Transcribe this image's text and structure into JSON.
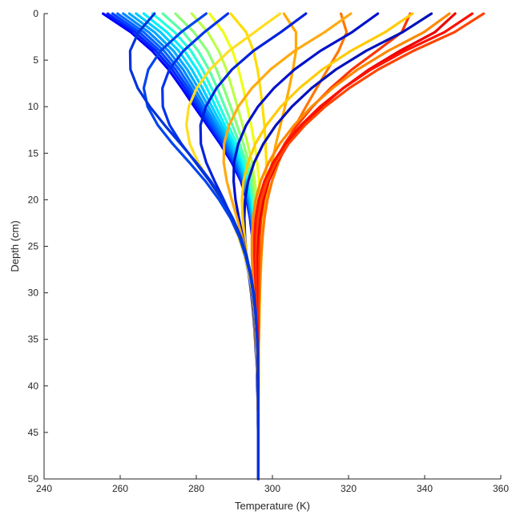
{
  "chart_data": {
    "type": "line",
    "xlabel": "Temperature (K)",
    "ylabel": "Depth (cm)",
    "xlim": [
      240,
      360
    ],
    "ylim": [
      0,
      50
    ],
    "y_reversed": true,
    "xticks": [
      240,
      260,
      280,
      300,
      320,
      340,
      360
    ],
    "yticks": [
      0,
      5,
      10,
      15,
      20,
      25,
      30,
      35,
      40,
      45,
      50
    ],
    "x_tick_labels": [
      "240",
      "260",
      "280",
      "300",
      "320",
      "340",
      "360"
    ],
    "y_tick_labels": [
      "0",
      "5",
      "10",
      "15",
      "20",
      "25",
      "30",
      "35",
      "40",
      "45",
      "50"
    ],
    "grid": false,
    "legend": "none",
    "depth": [
      0,
      2,
      4,
      6,
      8,
      10,
      12,
      14,
      16,
      18,
      20,
      22,
      24,
      26,
      28,
      30,
      32,
      34,
      36,
      38,
      40,
      42,
      44,
      46,
      48,
      50
    ],
    "series": [
      {
        "color": "#0000ff",
        "values": [
          255.5,
          262.8,
          268.4,
          272.7,
          276.2,
          279.5,
          282.9,
          286.3,
          289.3,
          291.7,
          293.2,
          294.1,
          294.7,
          295.2,
          295.5,
          295.8,
          296.0,
          296.1,
          296.2,
          296.2,
          296.3,
          296.3,
          296.3,
          296.3,
          296.3,
          296.3
        ]
      },
      {
        "color": "#0022ff",
        "values": [
          256.7,
          263.9,
          269.4,
          273.6,
          277.0,
          280.1,
          283.4,
          286.7,
          289.6,
          291.9,
          293.3,
          294.2,
          294.8,
          295.2,
          295.6,
          295.8,
          296.0,
          296.1,
          296.2,
          296.2,
          296.3,
          296.3,
          296.3,
          296.3,
          296.3,
          296.3
        ]
      },
      {
        "color": "#0044ff",
        "values": [
          258.0,
          265.0,
          270.4,
          274.5,
          277.8,
          280.8,
          283.9,
          287.1,
          289.9,
          292.1,
          293.5,
          294.3,
          294.9,
          295.3,
          295.6,
          295.9,
          296.0,
          296.1,
          296.2,
          296.2,
          296.3,
          296.3,
          296.3,
          296.3,
          296.3,
          296.3
        ]
      },
      {
        "color": "#0066ff",
        "values": [
          259.3,
          266.2,
          271.5,
          275.5,
          278.6,
          281.5,
          284.5,
          287.6,
          290.3,
          292.4,
          293.6,
          294.4,
          295.0,
          295.4,
          295.7,
          295.9,
          296.0,
          296.1,
          296.2,
          296.2,
          296.3,
          296.3,
          296.3,
          296.3,
          296.3,
          296.3
        ]
      },
      {
        "color": "#0088ff",
        "values": [
          260.8,
          267.5,
          272.7,
          276.5,
          279.5,
          282.3,
          285.2,
          288.1,
          290.7,
          292.6,
          293.8,
          294.6,
          295.1,
          295.5,
          295.8,
          295.9,
          296.1,
          296.2,
          296.2,
          296.2,
          296.3,
          296.3,
          296.3,
          296.3,
          296.3,
          296.3
        ]
      },
      {
        "color": "#00aaff",
        "values": [
          262.4,
          269.0,
          274.0,
          277.6,
          280.5,
          283.2,
          285.9,
          288.7,
          291.1,
          292.9,
          294.0,
          294.7,
          295.2,
          295.6,
          295.8,
          296.0,
          296.1,
          296.2,
          296.2,
          296.3,
          296.3,
          296.3,
          296.3,
          296.3,
          296.3,
          296.3
        ]
      },
      {
        "color": "#00ccff",
        "values": [
          264.2,
          270.6,
          275.4,
          278.8,
          281.6,
          284.1,
          286.7,
          289.3,
          291.5,
          293.2,
          294.2,
          294.9,
          295.3,
          295.6,
          295.9,
          296.0,
          296.1,
          296.2,
          296.2,
          296.3,
          296.3,
          296.3,
          296.3,
          296.3,
          296.3,
          296.3
        ]
      },
      {
        "color": "#00eeff",
        "values": [
          266.2,
          272.3,
          276.9,
          280.2,
          282.8,
          285.1,
          287.5,
          289.9,
          292.0,
          293.5,
          294.5,
          295.1,
          295.5,
          295.7,
          296.0,
          296.1,
          296.2,
          296.2,
          296.2,
          296.3,
          296.3,
          296.3,
          296.3,
          296.3,
          296.3,
          296.3
        ]
      },
      {
        "color": "#22ffdd",
        "values": [
          268.5,
          274.3,
          278.6,
          281.6,
          284.0,
          286.2,
          288.4,
          290.6,
          292.5,
          293.9,
          294.7,
          295.2,
          295.6,
          295.8,
          296.0,
          296.1,
          296.2,
          296.2,
          296.3,
          296.3,
          296.3,
          296.3,
          296.3,
          296.3,
          296.3,
          296.3
        ]
      },
      {
        "color": "#55ffaa",
        "values": [
          271.2,
          276.6,
          280.5,
          283.3,
          285.5,
          287.5,
          289.5,
          291.4,
          293.1,
          294.3,
          295.0,
          295.5,
          295.8,
          296.0,
          296.1,
          296.2,
          296.2,
          296.3,
          296.3,
          296.3,
          296.3,
          296.3,
          296.3,
          296.3,
          296.3,
          296.3
        ]
      },
      {
        "color": "#88ff77",
        "values": [
          274.5,
          279.4,
          282.9,
          285.3,
          287.2,
          289.0,
          290.7,
          292.4,
          293.8,
          294.8,
          295.4,
          295.8,
          296.0,
          296.1,
          296.2,
          296.2,
          296.3,
          296.3,
          296.3,
          296.3,
          296.3,
          296.3,
          296.3,
          296.3,
          296.3,
          296.3
        ]
      },
      {
        "color": "#bbff44",
        "values": [
          278.8,
          283.0,
          285.9,
          287.9,
          289.4,
          290.8,
          292.2,
          293.5,
          294.6,
          295.4,
          295.8,
          296.1,
          296.2,
          296.3,
          296.3,
          296.3,
          296.3,
          296.3,
          296.3,
          296.3,
          296.3,
          296.3,
          296.3,
          296.3,
          296.3,
          296.3
        ]
      },
      {
        "color": "#eeff11",
        "values": [
          283.5,
          287.1,
          289.5,
          291.1,
          292.3,
          293.4,
          294.4,
          295.3,
          296.0,
          296.5,
          296.7,
          296.8,
          296.8,
          296.7,
          296.6,
          296.5,
          296.4,
          296.4,
          296.4,
          296.3,
          296.3,
          296.3,
          296.3,
          296.3,
          296.3,
          296.3
        ]
      },
      {
        "color": "#ffdd00",
        "values": [
          289.0,
          293.1,
          295.0,
          296.1,
          296.8,
          297.4,
          297.9,
          298.2,
          298.4,
          298.3,
          298.0,
          297.7,
          297.4,
          297.1,
          296.9,
          296.7,
          296.6,
          296.5,
          296.4,
          296.4,
          296.4,
          296.3,
          296.3,
          296.3,
          296.3,
          296.3
        ]
      },
      {
        "color": "#ffaa00",
        "values": [
          303.0,
          306.2,
          306.2,
          305.4,
          304.4,
          303.3,
          302.1,
          300.9,
          299.9,
          299.0,
          298.3,
          297.8,
          297.4,
          297.1,
          296.9,
          296.7,
          296.6,
          296.5,
          296.4,
          296.4,
          296.3,
          296.3,
          296.3,
          296.3,
          296.3,
          296.3
        ]
      },
      {
        "color": "#ff7700",
        "values": [
          318.0,
          319.5,
          317.4,
          314.5,
          311.6,
          308.8,
          306.1,
          303.6,
          301.6,
          299.9,
          298.7,
          297.9,
          297.4,
          297.0,
          296.7,
          296.6,
          296.4,
          296.4,
          296.3,
          296.3,
          296.3,
          296.3,
          296.3,
          296.3,
          296.3,
          296.3
        ]
      },
      {
        "color": "#ff3300",
        "values": [
          336.2,
          334.0,
          327.5,
          320.9,
          315.3,
          310.5,
          306.5,
          303.2,
          300.7,
          298.9,
          297.7,
          297.0,
          296.6,
          296.4,
          296.3,
          296.3,
          296.3,
          296.3,
          296.3,
          296.3,
          296.3,
          296.3,
          296.3,
          296.3,
          296.3,
          296.3
        ]
      },
      {
        "color": "#ee0000",
        "values": [
          348.0,
          342.7,
          333.5,
          325.4,
          318.6,
          312.9,
          308.1,
          304.2,
          301.2,
          299.0,
          297.6,
          296.7,
          296.2,
          295.9,
          295.8,
          295.8,
          295.9,
          296.0,
          296.1,
          296.1,
          296.2,
          296.2,
          296.3,
          296.3,
          296.3,
          296.3
        ]
      },
      {
        "color": "#ff4400",
        "values": [
          355.5,
          347.8,
          337.0,
          327.8,
          320.2,
          313.8,
          308.5,
          304.2,
          300.9,
          298.6,
          297.1,
          296.2,
          295.7,
          295.5,
          295.5,
          295.6,
          295.8,
          295.9,
          296.0,
          296.1,
          296.2,
          296.2,
          296.3,
          296.3,
          296.3,
          296.3
        ]
      },
      {
        "color": "#ff1100",
        "values": [
          352.5,
          345.2,
          334.8,
          325.9,
          318.6,
          312.5,
          307.5,
          303.4,
          300.2,
          297.9,
          296.4,
          295.6,
          295.2,
          295.1,
          295.2,
          295.4,
          295.6,
          295.8,
          296.0,
          296.1,
          296.2,
          296.2,
          296.3,
          296.3,
          296.3,
          296.3
        ]
      },
      {
        "color": "#ff8800",
        "values": [
          346.5,
          339.8,
          330.4,
          322.4,
          315.8,
          310.3,
          305.7,
          301.9,
          299.0,
          296.9,
          295.6,
          294.9,
          294.6,
          294.6,
          294.8,
          295.1,
          295.4,
          295.7,
          295.9,
          296.0,
          296.1,
          296.2,
          296.3,
          296.3,
          296.3,
          296.3
        ]
      },
      {
        "color": "#0011bb",
        "values": [
          341.8,
          334.2,
          324.6,
          316.7,
          310.3,
          305.1,
          300.9,
          297.6,
          295.2,
          293.6,
          292.8,
          292.6,
          292.8,
          293.2,
          293.8,
          294.4,
          294.9,
          295.3,
          295.6,
          295.9,
          296.0,
          296.2,
          296.2,
          296.3,
          296.3,
          296.3
        ]
      },
      {
        "color": "#ffcc00",
        "values": [
          336.8,
          329.6,
          320.6,
          313.1,
          307.1,
          302.2,
          298.4,
          295.5,
          293.6,
          292.4,
          292.0,
          292.2,
          292.7,
          293.3,
          293.9,
          294.5,
          295.0,
          295.4,
          295.7,
          295.9,
          296.1,
          296.2,
          296.3,
          296.3,
          296.3,
          296.3
        ]
      },
      {
        "color": "#0011cc",
        "values": [
          327.7,
          320.9,
          312.6,
          305.8,
          300.4,
          296.2,
          293.1,
          291.0,
          289.9,
          289.8,
          290.3,
          291.2,
          292.2,
          293.1,
          293.9,
          294.6,
          295.1,
          295.5,
          295.8,
          296.0,
          296.1,
          296.2,
          296.3,
          296.3,
          296.3,
          296.3
        ]
      },
      {
        "color": "#ffaa11",
        "values": [
          320.6,
          313.7,
          305.8,
          299.5,
          294.6,
          291.0,
          288.6,
          287.3,
          287.2,
          288.0,
          289.3,
          290.7,
          292.0,
          293.1,
          294.0,
          294.7,
          295.2,
          295.6,
          295.9,
          296.0,
          296.2,
          296.2,
          296.3,
          296.3,
          296.3,
          296.3
        ]
      },
      {
        "color": "#0022dd",
        "values": [
          308.8,
          302.2,
          295.0,
          289.4,
          285.3,
          282.5,
          281.1,
          281.2,
          282.6,
          284.8,
          287.2,
          289.4,
          291.2,
          292.7,
          293.8,
          294.7,
          295.3,
          295.7,
          296.0,
          296.1,
          296.2,
          296.3,
          296.3,
          296.3,
          296.3,
          296.3
        ]
      },
      {
        "color": "#ffdd22",
        "values": [
          302.0,
          295.3,
          288.6,
          283.6,
          280.1,
          278.0,
          277.4,
          278.3,
          280.5,
          283.5,
          286.5,
          289.1,
          291.1,
          292.7,
          293.9,
          294.8,
          295.4,
          295.8,
          296.0,
          296.2,
          296.3,
          296.3,
          296.3,
          296.3,
          296.3,
          296.3
        ]
      },
      {
        "color": "#0033ee",
        "values": [
          288.3,
          282.1,
          276.6,
          272.9,
          271.1,
          271.2,
          273.0,
          276.1,
          279.8,
          283.5,
          286.8,
          289.5,
          291.6,
          293.1,
          294.2,
          295.0,
          295.5,
          295.9,
          296.1,
          296.2,
          296.3,
          296.3,
          296.3,
          296.3,
          296.3,
          296.3
        ]
      },
      {
        "color": "#0044ee",
        "values": [
          282.6,
          276.0,
          270.6,
          267.4,
          266.2,
          267.2,
          269.9,
          273.8,
          278.2,
          282.4,
          286.0,
          289.0,
          291.3,
          292.9,
          294.1,
          294.9,
          295.5,
          295.9,
          296.1,
          296.2,
          296.3,
          296.3,
          296.3,
          296.3,
          296.3,
          296.3
        ]
      },
      {
        "color": "#0033dd",
        "values": [
          269.0,
          264.8,
          262.6,
          262.7,
          264.6,
          267.8,
          271.7,
          275.9,
          280.0,
          283.8,
          287.0,
          289.6,
          291.7,
          293.2,
          294.3,
          295.1,
          295.6,
          295.9,
          296.1,
          296.2,
          296.3,
          296.3,
          296.3,
          296.3,
          296.3,
          296.3
        ]
      }
    ]
  }
}
